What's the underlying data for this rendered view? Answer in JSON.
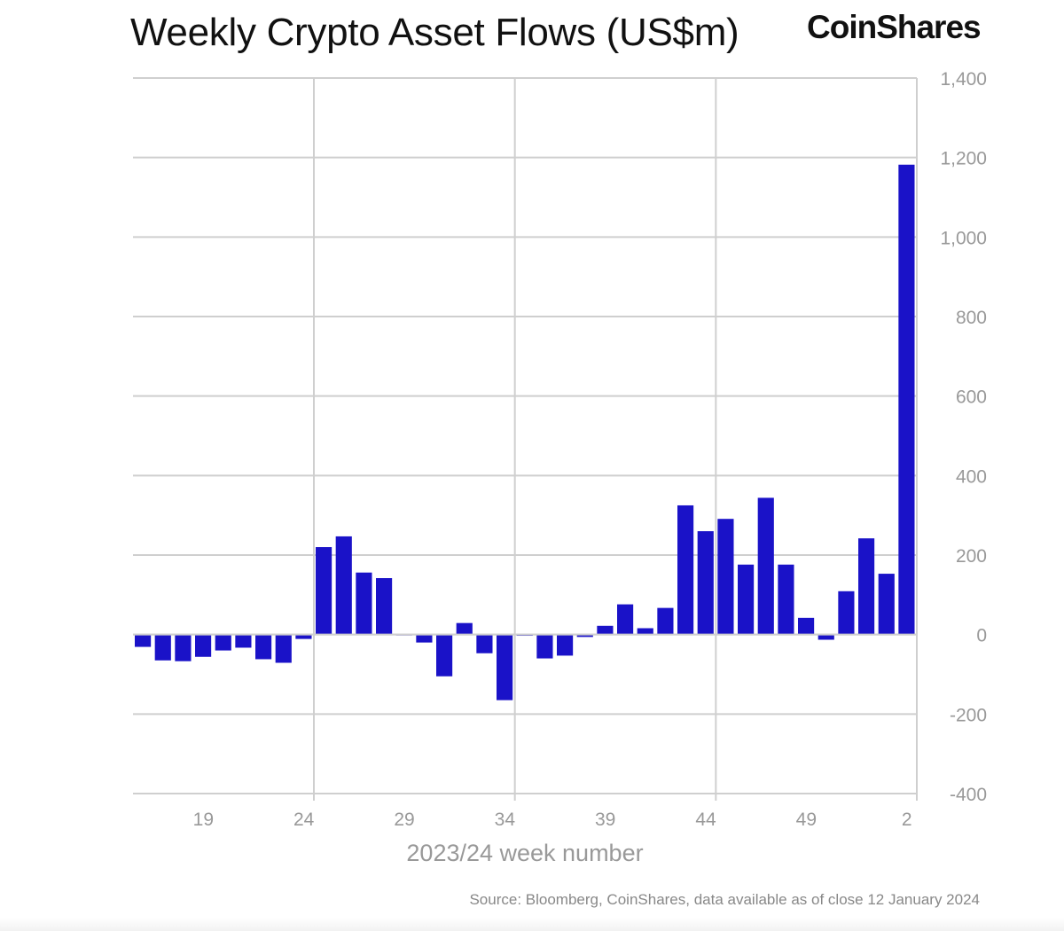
{
  "title": "Weekly Crypto Asset Flows (US$m)",
  "logo": "CoinShares",
  "source": "Source: Bloomberg, CoinShares, data available as of close 12 January 2024",
  "chart_data": {
    "type": "bar",
    "title": "Weekly Crypto Asset Flows (US$m)",
    "xlabel": "2023/24 week number",
    "ylabel": "",
    "ylim": [
      -400,
      1400
    ],
    "yticks": [
      -400,
      -200,
      0,
      200,
      400,
      600,
      800,
      1000,
      1200,
      1400
    ],
    "ytick_labels": [
      "-400",
      "-200",
      "0",
      "200",
      "400",
      "600",
      "800",
      "1,000",
      "1,200",
      "1,400"
    ],
    "y_axis_side": "right",
    "xtick_labels": [
      "19",
      "24",
      "29",
      "34",
      "39",
      "44",
      "49",
      "2"
    ],
    "grid": true,
    "bar_color": "#1a12c8",
    "categories": [
      "16",
      "17",
      "18",
      "19",
      "20",
      "21",
      "22",
      "23",
      "24",
      "25",
      "26",
      "27",
      "28",
      "29",
      "30",
      "31",
      "32",
      "33",
      "34",
      "35",
      "36",
      "37",
      "38",
      "39",
      "40",
      "41",
      "42",
      "43",
      "44",
      "45",
      "46",
      "47",
      "48",
      "49",
      "50",
      "51",
      "52",
      "1",
      "2"
    ],
    "values": [
      -31,
      -65,
      -67,
      -56,
      -40,
      -33,
      -62,
      -71,
      -11,
      220,
      247,
      156,
      142,
      0,
      -20,
      -105,
      29,
      -47,
      -165,
      -3,
      -60,
      -53,
      -6,
      22,
      76,
      16,
      67,
      325,
      260,
      291,
      176,
      344,
      176,
      42,
      -13,
      109,
      242,
      153,
      1182
    ]
  }
}
